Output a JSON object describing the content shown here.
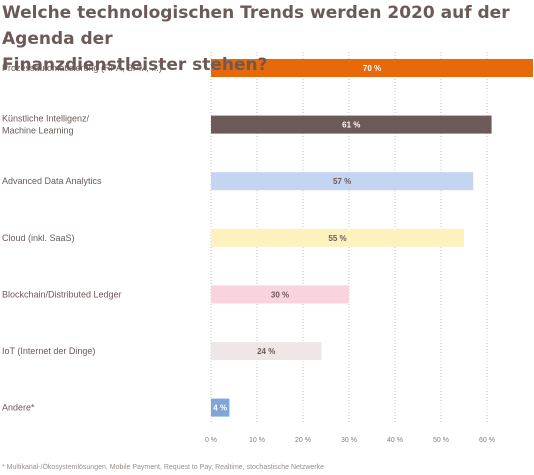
{
  "title_lines": [
    "Welche technologischen Trends werden 2020 auf der Agenda der",
    "Finanzdienstleister stehen?"
  ],
  "footnote": "* Multikanal-/Ökosystemlösungen, Mobile Payment, Request to Pay, Realtime, stochastische Netzwerke",
  "chart_data": {
    "type": "bar",
    "orientation": "horizontal",
    "title": "Welche technologischen Trends werden 2020 auf der Agenda der Finanzdienstleister stehen?",
    "xlabel": "",
    "ylabel": "",
    "xlim": [
      0,
      70
    ],
    "grid": true,
    "categories": [
      [
        "Prozessautomatisierung (RPA, BPM, ...)"
      ],
      [
        "Künstliche Intelligenz/",
        "Machine Learning"
      ],
      [
        "Advanced Data Analytics"
      ],
      [
        "Cloud (inkl. SaaS)"
      ],
      [
        "Blockchain/Distributed Ledger"
      ],
      [
        "IoT (Internet der Dinge)"
      ],
      [
        "Andere*"
      ]
    ],
    "values": [
      70,
      61,
      57,
      55,
      30,
      24,
      4
    ],
    "value_labels": [
      "70 %",
      "61 %",
      "57 %",
      "55 %",
      "30 %",
      "24 %",
      "4 %"
    ],
    "bar_colors": [
      "#e8690a",
      "#6b5a58",
      "#c3d5f0",
      "#fdf1bd",
      "#f9d3dd",
      "#efe7e7",
      "#7fa5db"
    ],
    "label_colors": [
      "#ffffff",
      "#ffffff",
      "#6b5a58",
      "#6b5a58",
      "#6b5a58",
      "#6b5a58",
      "#ffffff"
    ],
    "x_ticks": [
      0,
      10,
      20,
      30,
      40,
      50,
      60
    ],
    "x_tick_labels": [
      "0 %",
      "10 %",
      "20 %",
      "30 %",
      "40 %",
      "50 %",
      "60 %"
    ]
  }
}
